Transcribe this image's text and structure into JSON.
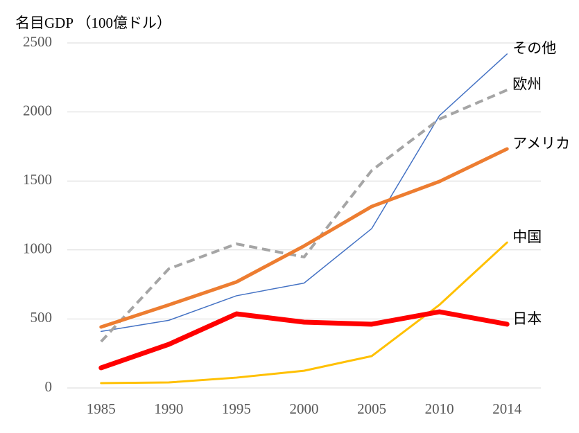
{
  "chart_data": {
    "type": "line",
    "title": "名目GDP （100億ドル）",
    "categories": [
      "1985",
      "1990",
      "1995",
      "2000",
      "2005",
      "2010",
      "2014"
    ],
    "ylim": [
      0,
      2500
    ],
    "yticks": [
      0,
      500,
      1000,
      1500,
      2000,
      2500
    ],
    "grid": true,
    "series": [
      {
        "name": "その他",
        "color": "#4472c4",
        "width": 1.5,
        "line_style": "solid",
        "values": [
          410,
          490,
          668,
          760,
          1155,
          1973,
          2420
        ]
      },
      {
        "name": "欧州",
        "color": "#a5a5a5",
        "width": 4,
        "line_style": "dashed",
        "values": [
          336,
          863,
          1044,
          949,
          1576,
          1948,
          2159
        ]
      },
      {
        "name": "アメリカ",
        "color": "#ed7d31",
        "width": 5,
        "line_style": "solid",
        "values": [
          442,
          602,
          768,
          1029,
          1315,
          1496,
          1732
        ]
      },
      {
        "name": "中国",
        "color": "#ffc000",
        "width": 3,
        "line_style": "solid",
        "values": [
          35,
          40,
          75,
          125,
          231,
          602,
          1054
        ]
      },
      {
        "name": "日本",
        "color": "#ff0000",
        "width": 7,
        "line_style": "solid",
        "values": [
          146,
          316,
          537,
          477,
          462,
          552,
          462
        ]
      }
    ]
  }
}
